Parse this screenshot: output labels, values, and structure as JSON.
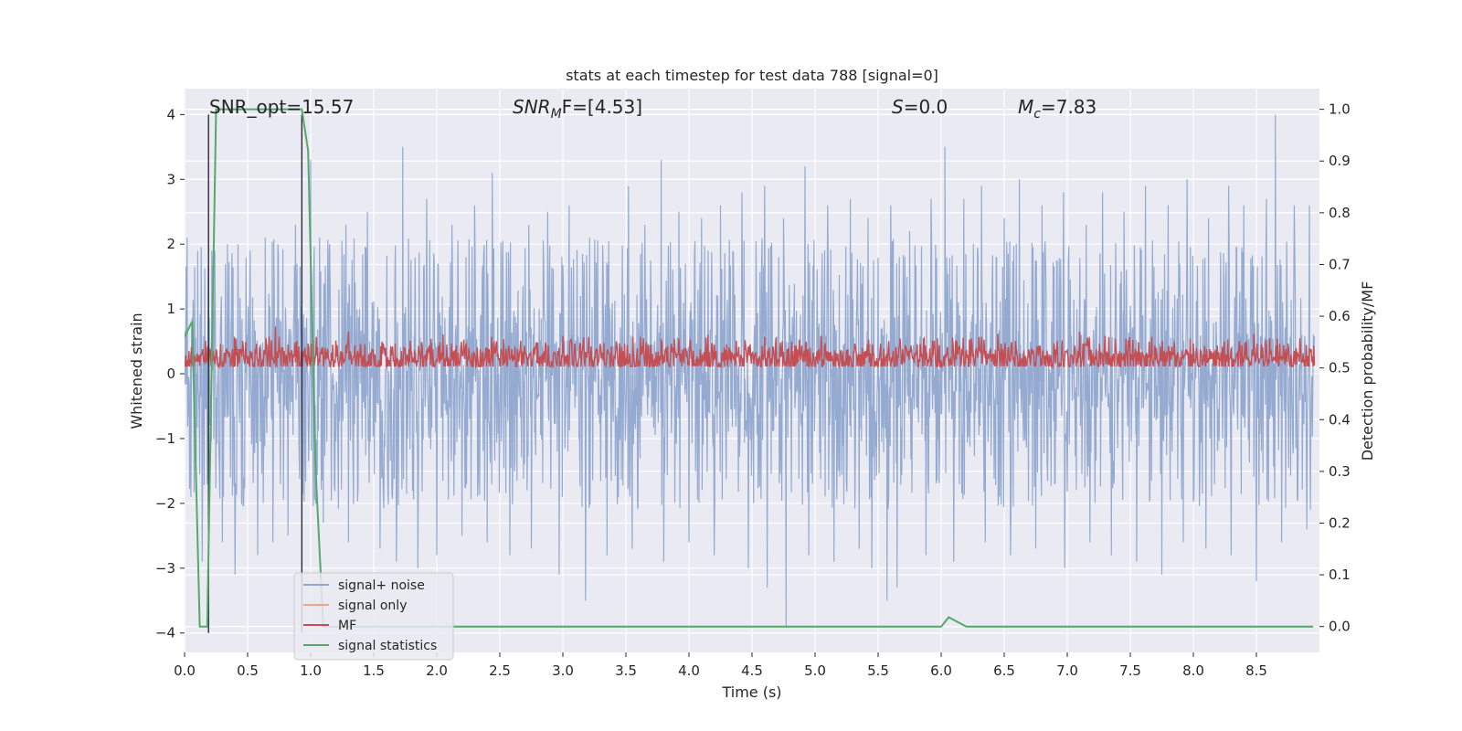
{
  "chart_data": {
    "type": "line",
    "title": "stats at each timestep for test data 788 [signal=0]",
    "xlabel": "Time (s)",
    "ylabel": "Whitened strain",
    "y2label": "Detection probability/MF",
    "xlim": [
      0.0,
      9.0
    ],
    "ylim": [
      -4.3,
      4.4
    ],
    "y2lim": [
      -0.05,
      1.04
    ],
    "xticks": [
      0.0,
      0.5,
      1.0,
      1.5,
      2.0,
      2.5,
      3.0,
      3.5,
      4.0,
      4.5,
      5.0,
      5.5,
      6.0,
      6.5,
      7.0,
      7.5,
      8.0,
      8.5
    ],
    "xtick_labels": [
      "0.0",
      "0.5",
      "1.0",
      "1.5",
      "2.0",
      "2.5",
      "3.0",
      "3.5",
      "4.0",
      "4.5",
      "5.0",
      "5.5",
      "6.0",
      "6.5",
      "7.0",
      "7.5",
      "8.0",
      "8.5"
    ],
    "yticks": [
      4,
      3,
      2,
      1,
      0,
      -1,
      -2,
      -3,
      -4
    ],
    "ytick_labels": [
      "4",
      "3",
      "2",
      "1",
      "0",
      "−1",
      "−2",
      "−3",
      "−4"
    ],
    "y2ticks": [
      1.0,
      0.9,
      0.8,
      0.7,
      0.6,
      0.5,
      0.4,
      0.3,
      0.2,
      0.1,
      0.0
    ],
    "y2tick_labels": [
      "1.0",
      "0.9",
      "0.8",
      "0.7",
      "0.6",
      "0.5",
      "0.4",
      "0.3",
      "0.2",
      "0.1",
      "0.0"
    ],
    "grid": true,
    "annotations": {
      "snr_opt": "SNR_opt=15.57",
      "snr_mf_prefix": "SNR",
      "snr_mf_sub": "M",
      "snr_mf_suffix": "F=[4.53]",
      "s_italic": "S",
      "s_rest": "=0.0",
      "mc_italic": "M",
      "mc_sub": "c",
      "mc_rest": "=7.83"
    },
    "vertical_lines_x": [
      0.19,
      0.93
    ],
    "legend": {
      "position": "lower-left",
      "entries": [
        {
          "label": "signal+ noise",
          "color": "#8fa6cf"
        },
        {
          "label": "signal only",
          "color": "#e8a88d"
        },
        {
          "label": "MF",
          "color": "#c44e52"
        },
        {
          "label": "signal statistics",
          "color": "#55a868"
        }
      ]
    },
    "series": [
      {
        "name": "signal statistics",
        "axis": "right",
        "color": "#55a868",
        "x": [
          0.0,
          0.06,
          0.12,
          0.18,
          0.25,
          0.32,
          0.93,
          0.98,
          1.04,
          1.1,
          1.2,
          6.0,
          6.06,
          6.2,
          8.95
        ],
        "y": [
          0.56,
          0.59,
          0.0,
          0.0,
          1.0,
          1.0,
          1.0,
          0.92,
          0.3,
          0.0,
          0.0,
          0.0,
          0.018,
          0.0,
          0.0
        ]
      },
      {
        "name": "signal+ noise",
        "axis": "left",
        "color": "#8fa6cf",
        "noise_band": [
          -1.5,
          1.6
        ],
        "peaks_x": [
          0.02,
          0.24,
          0.34,
          0.4,
          0.52,
          0.64,
          0.74,
          0.88,
          1.0,
          1.07,
          1.15,
          1.28,
          1.45,
          1.55,
          1.73,
          1.92,
          2.12,
          2.3,
          2.44,
          2.58,
          2.73,
          2.88,
          3.05,
          3.18,
          3.35,
          3.52,
          3.65,
          3.78,
          3.92,
          4.1,
          4.25,
          4.42,
          4.6,
          4.75,
          4.92,
          5.1,
          5.28,
          5.42,
          5.6,
          5.75,
          5.92,
          6.03,
          6.18,
          6.32,
          6.5,
          6.62,
          6.8,
          6.97,
          7.15,
          7.28,
          7.45,
          7.62,
          7.8,
          7.95,
          8.12,
          8.28,
          8.4,
          8.58,
          8.65,
          8.8,
          8.92
        ],
        "peaks_y": [
          2.1,
          1.9,
          2.0,
          2.2,
          1.9,
          2.1,
          2.0,
          2.3,
          3.3,
          2.1,
          2.0,
          2.3,
          2.5,
          2.4,
          3.5,
          2.7,
          2.3,
          2.6,
          3.1,
          2.6,
          2.3,
          2.5,
          2.6,
          2.4,
          2.7,
          2.9,
          2.3,
          3.3,
          2.5,
          2.4,
          2.6,
          2.8,
          2.9,
          2.4,
          3.2,
          2.6,
          2.7,
          2.4,
          2.6,
          2.2,
          2.7,
          3.5,
          2.7,
          2.9,
          2.4,
          3.0,
          2.6,
          2.8,
          2.3,
          2.8,
          2.5,
          2.9,
          2.6,
          3.0,
          2.4,
          2.9,
          2.6,
          2.7,
          4.0,
          2.6,
          2.6
        ],
        "troughs_x": [
          0.05,
          0.14,
          0.3,
          0.4,
          0.58,
          0.7,
          0.82,
          1.1,
          1.3,
          1.55,
          1.68,
          1.85,
          2.0,
          2.2,
          2.4,
          2.58,
          2.75,
          2.97,
          3.18,
          3.35,
          3.55,
          3.8,
          4.0,
          4.2,
          4.47,
          4.62,
          4.77,
          4.95,
          5.15,
          5.35,
          5.45,
          5.57,
          5.65,
          5.88,
          6.1,
          6.35,
          6.55,
          6.75,
          6.98,
          7.18,
          7.35,
          7.55,
          7.75,
          7.92,
          8.1,
          8.3,
          8.5,
          8.7,
          8.9
        ],
        "troughs_y": [
          -1.9,
          -2.9,
          -2.6,
          -3.1,
          -2.8,
          -2.6,
          -2.5,
          -2.3,
          -2.6,
          -2.7,
          -2.9,
          -3.0,
          -2.8,
          -2.5,
          -2.6,
          -2.8,
          -2.7,
          -3.1,
          -3.5,
          -2.8,
          -2.7,
          -2.9,
          -2.6,
          -2.8,
          -3.0,
          -3.3,
          -3.9,
          -2.8,
          -2.9,
          -2.7,
          -3.0,
          -3.5,
          -3.3,
          -2.8,
          -2.9,
          -2.6,
          -2.8,
          -2.7,
          -3.0,
          -2.6,
          -2.8,
          -2.9,
          -3.1,
          -2.6,
          -2.7,
          -2.8,
          -3.2,
          -2.6,
          -2.4
        ]
      },
      {
        "name": "MF",
        "axis": "right",
        "color": "#c44e52",
        "center": 0.52,
        "band": [
          0.505,
          0.56
        ],
        "spikes_x": [
          0.72,
          1.3,
          2.05,
          3.0,
          4.15,
          5.05,
          6.45,
          7.1,
          7.3,
          8.48
        ],
        "spikes_y": [
          0.58,
          0.57,
          0.565,
          0.562,
          0.565,
          0.562,
          0.566,
          0.57,
          0.562,
          0.566
        ]
      }
    ]
  }
}
